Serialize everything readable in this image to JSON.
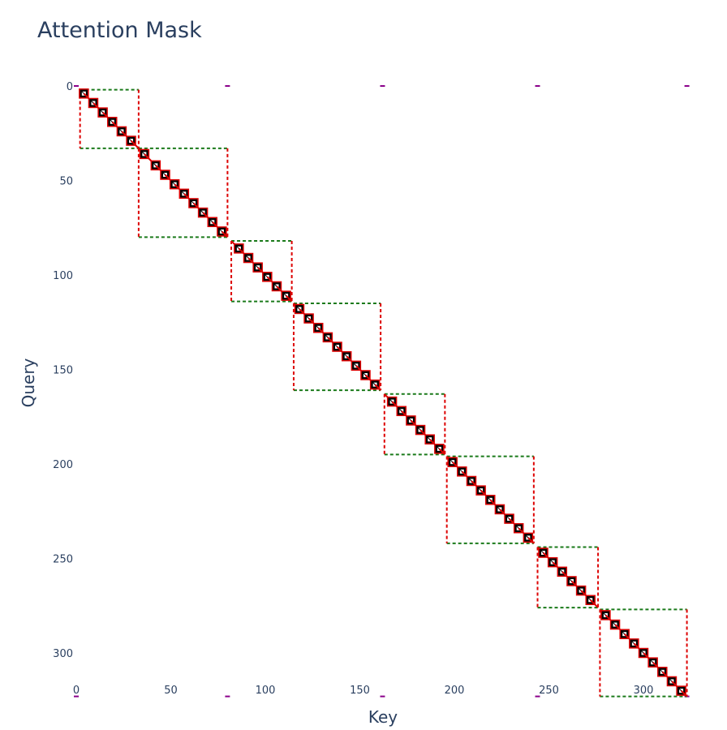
{
  "chart_data": {
    "type": "heatmap",
    "title": "Attention Mask",
    "xlabel": "Key",
    "ylabel": "Query",
    "xlim": [
      0,
      324
    ],
    "ylim": [
      324,
      0
    ],
    "x_ticks": [
      0,
      50,
      100,
      150,
      200,
      250,
      300
    ],
    "y_ticks": [
      0,
      50,
      100,
      150,
      200,
      250,
      300
    ],
    "grid": false,
    "blocks": [
      {
        "start": 2,
        "end": 33,
        "cells": [
          4,
          9,
          14,
          19,
          24,
          29
        ]
      },
      {
        "start": 33,
        "end": 80,
        "cells": [
          36,
          42,
          47,
          52,
          57,
          62,
          67,
          72,
          77
        ]
      },
      {
        "start": 82,
        "end": 114,
        "cells": [
          86,
          91,
          96,
          101,
          106,
          111
        ]
      },
      {
        "start": 115,
        "end": 161,
        "cells": [
          118,
          123,
          128,
          133,
          138,
          143,
          148,
          153,
          158
        ]
      },
      {
        "start": 163,
        "end": 195,
        "cells": [
          167,
          172,
          177,
          182,
          187,
          192
        ]
      },
      {
        "start": 196,
        "end": 242,
        "cells": [
          199,
          204,
          209,
          214,
          219,
          224,
          229,
          234,
          239
        ]
      },
      {
        "start": 244,
        "end": 276,
        "cells": [
          247,
          252,
          257,
          262,
          267,
          272
        ]
      },
      {
        "start": 277,
        "end": 323,
        "cells": [
          280,
          285,
          290,
          295,
          300,
          305,
          310,
          315,
          320
        ]
      }
    ],
    "colors": {
      "inner_block_outline": "#dd0000",
      "outer_block_outline": "#1a7a1a",
      "cell_fill": "#000000",
      "cell_mark": "#ffffff",
      "edge_marker": "#8b008b"
    }
  }
}
